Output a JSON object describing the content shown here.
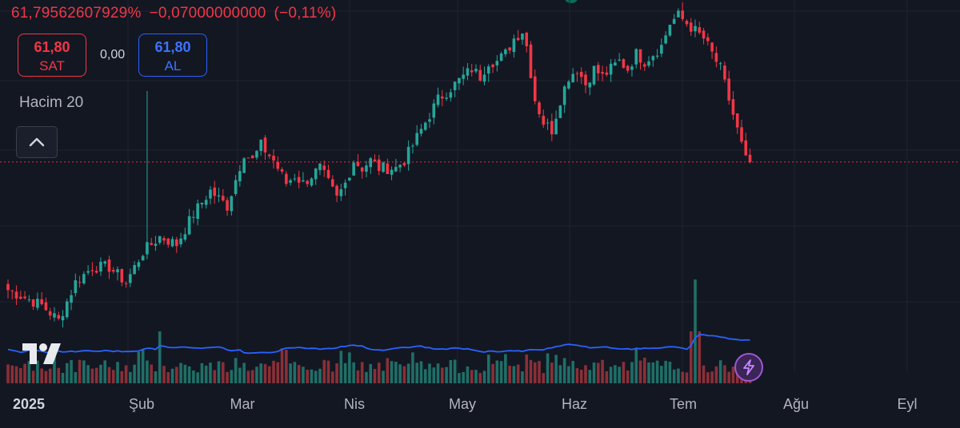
{
  "header": {
    "value_pct": "61,79562607929%",
    "change_abs": "−0,07000000000",
    "change_pct": "(−0,11%)"
  },
  "sell": {
    "price": "61,80",
    "label": "SAT"
  },
  "buy": {
    "price": "61,80",
    "label": "AL"
  },
  "spread": "0,00",
  "volume_indicator": "Hacim 20",
  "time_axis": [
    "2025",
    "Şub",
    "Mar",
    "Nis",
    "May",
    "Haz",
    "Tem",
    "Ağu",
    "Eyl"
  ],
  "colors": {
    "up": "#26a69a",
    "down": "#f23645",
    "ma": "#2962ff",
    "background": "#131722",
    "grid": "#1f2331"
  },
  "icons": {
    "collapse": "chevron-up-icon",
    "logo": "tradingview-logo-icon",
    "bolt": "lightning-icon"
  },
  "chart_data": {
    "type": "candlestick",
    "title": "",
    "last_price": 61.8,
    "x_ticks": [
      "2025",
      "Şub",
      "Mar",
      "Nis",
      "May",
      "Haz",
      "Tem",
      "Ağu",
      "Eyl"
    ],
    "ylim": [
      38,
      82
    ],
    "close_path": [
      [
        0,
        45
      ],
      [
        4,
        44
      ],
      [
        8,
        43
      ],
      [
        12,
        41
      ],
      [
        16,
        46
      ],
      [
        20,
        48
      ],
      [
        24,
        48
      ],
      [
        28,
        46
      ],
      [
        32,
        50
      ],
      [
        36,
        52
      ],
      [
        40,
        51
      ],
      [
        44,
        55
      ],
      [
        48,
        58
      ],
      [
        52,
        56
      ],
      [
        56,
        63
      ],
      [
        58,
        62
      ],
      [
        60,
        64
      ],
      [
        63,
        62
      ],
      [
        66,
        59
      ],
      [
        68,
        60
      ],
      [
        70,
        59
      ],
      [
        72,
        60
      ],
      [
        74,
        61
      ],
      [
        76,
        59
      ],
      [
        78,
        57
      ],
      [
        80,
        59
      ],
      [
        82,
        62
      ],
      [
        84,
        61
      ],
      [
        86,
        62
      ],
      [
        88,
        61
      ],
      [
        90,
        61
      ],
      [
        92,
        61
      ],
      [
        94,
        62
      ],
      [
        96,
        64
      ],
      [
        98,
        66
      ],
      [
        100,
        68
      ],
      [
        102,
        70
      ],
      [
        104,
        71
      ],
      [
        106,
        72
      ],
      [
        108,
        73
      ],
      [
        110,
        74
      ],
      [
        112,
        73
      ],
      [
        114,
        75
      ],
      [
        116,
        75
      ],
      [
        118,
        76
      ],
      [
        120,
        78
      ],
      [
        122,
        79
      ],
      [
        123,
        77
      ],
      [
        125,
        70
      ],
      [
        127,
        67
      ],
      [
        129,
        66
      ],
      [
        131,
        70
      ],
      [
        133,
        73
      ],
      [
        135,
        74
      ],
      [
        137,
        72
      ],
      [
        139,
        74
      ],
      [
        141,
        73
      ],
      [
        143,
        74
      ],
      [
        145,
        75
      ],
      [
        147,
        74
      ],
      [
        149,
        76
      ],
      [
        151,
        75
      ],
      [
        153,
        76
      ],
      [
        155,
        77
      ],
      [
        157,
        80
      ],
      [
        159,
        81
      ],
      [
        161,
        80
      ],
      [
        163,
        79
      ],
      [
        165,
        78
      ],
      [
        167,
        76
      ],
      [
        169,
        74
      ],
      [
        171,
        70
      ],
      [
        173,
        66
      ],
      [
        175,
        62
      ],
      [
        176,
        61.8
      ]
    ],
    "volume_ma_20": "blue line over volume bars",
    "volume_spike_days": [
      36,
      162,
      163,
      164
    ]
  }
}
